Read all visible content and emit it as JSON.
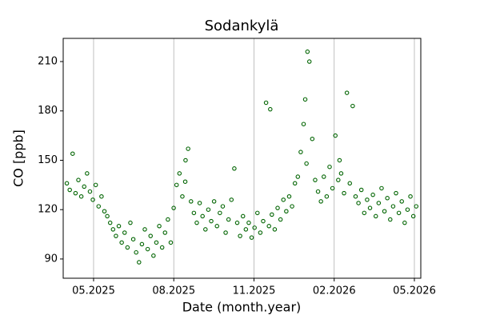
{
  "chart_data": {
    "type": "scatter",
    "title": "Sodankylä",
    "x_label": "Date (month.year)",
    "y_label": "CO [ppb]",
    "grid": "x",
    "marker": "hollow-circle",
    "xlim": [
      2025.2386,
      2026.3533
    ],
    "xticks": [
      {
        "value": 2025.3333,
        "label": "05.2025"
      },
      {
        "value": 2025.5833,
        "label": "08.2025"
      },
      {
        "value": 2025.8333,
        "label": "11.2025"
      },
      {
        "value": 2026.0833,
        "label": "02.2026"
      },
      {
        "value": 2026.3333,
        "label": "05.2026"
      }
    ],
    "ylim": [
      78.3,
      224.1
    ],
    "yticks": [
      90,
      120,
      150,
      180,
      210
    ],
    "series": [
      {
        "color": "#006400",
        "x": [
          2025.25,
          2025.259,
          2025.268,
          2025.277,
          2025.286,
          2025.295,
          2025.304,
          2025.313,
          2025.322,
          2025.331,
          2025.34,
          2025.349,
          2025.358,
          2025.367,
          2025.376,
          2025.385,
          2025.394,
          2025.403,
          2025.412,
          2025.421,
          2025.43,
          2025.439,
          2025.448,
          2025.457,
          2025.466,
          2025.475,
          2025.484,
          2025.493,
          2025.502,
          2025.511,
          2025.52,
          2025.529,
          2025.538,
          2025.547,
          2025.556,
          2025.565,
          2025.574,
          2025.583,
          2025.592,
          2025.601,
          2025.61,
          2025.619,
          2025.628,
          2025.637,
          2025.646,
          2025.655,
          2025.664,
          2025.673,
          2025.682,
          2025.691,
          2025.7,
          2025.709,
          2025.718,
          2025.727,
          2025.736,
          2025.745,
          2025.754,
          2025.763,
          2025.772,
          2025.781,
          2025.79,
          2025.799,
          2025.808,
          2025.817,
          2025.826,
          2025.835,
          2025.844,
          2025.853,
          2025.862,
          2025.871,
          2025.88,
          2025.889,
          2025.898,
          2025.907,
          2025.916,
          2025.925,
          2025.934,
          2025.943,
          2025.952,
          2025.961,
          2025.97,
          2025.979,
          2025.988,
          2025.997,
          2026.006,
          2026.015,
          2026.024,
          2026.033,
          2026.042,
          2026.051,
          2026.06,
          2026.069,
          2026.078,
          2026.087,
          2026.096,
          2026.105,
          2026.114,
          2026.123,
          2026.132,
          2026.141,
          2026.15,
          2026.159,
          2026.168,
          2026.177,
          2026.186,
          2026.195,
          2026.204,
          2026.213,
          2026.222,
          2026.231,
          2026.24,
          2026.249,
          2026.258,
          2026.267,
          2026.276,
          2026.285,
          2026.294,
          2026.303,
          2026.312,
          2026.321,
          2026.33,
          2026.339,
          2026.0,
          2025.993,
          2025.884,
          2025.62,
          2026.1
        ],
        "values": [
          136,
          132,
          154,
          130,
          138,
          128,
          134,
          142,
          131,
          126,
          135,
          122,
          128,
          119,
          116,
          112,
          108,
          104,
          110,
          100,
          106,
          97,
          112,
          102,
          94,
          88,
          99,
          108,
          96,
          104,
          92,
          100,
          110,
          97,
          106,
          114,
          100,
          121,
          135,
          142,
          128,
          137,
          157,
          125,
          118,
          112,
          124,
          116,
          108,
          120,
          113,
          125,
          110,
          118,
          122,
          106,
          114,
          126,
          145,
          112,
          104,
          116,
          108,
          112,
          103,
          109,
          118,
          106,
          113,
          185,
          110,
          117,
          108,
          121,
          114,
          126,
          119,
          128,
          122,
          136,
          140,
          155,
          172,
          148,
          210,
          163,
          138,
          131,
          125,
          140,
          128,
          146,
          133,
          165,
          138,
          142,
          130,
          191,
          136,
          183,
          128,
          124,
          132,
          118,
          126,
          121,
          129,
          116,
          124,
          133,
          119,
          127,
          114,
          122,
          130,
          118,
          125,
          112,
          120,
          128,
          116,
          122,
          216,
          187,
          181,
          150,
          150
        ]
      }
    ]
  }
}
